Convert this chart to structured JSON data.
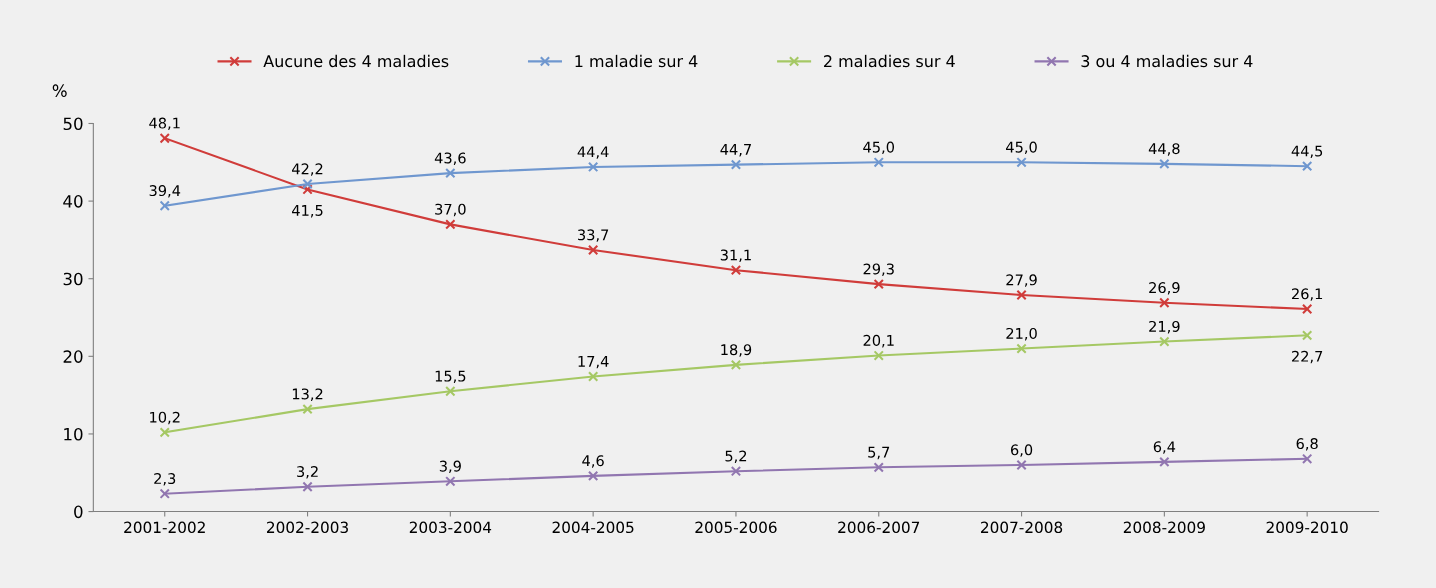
{
  "chart_data": {
    "type": "line",
    "ylabel": "%",
    "categories": [
      "2001-2002",
      "2002-2003",
      "2003-2004",
      "2004-2005",
      "2005-2006",
      "2006-2007",
      "2007-2008",
      "2008-2009",
      "2009-2010"
    ],
    "series": [
      {
        "name": "Aucune des 4 maladies",
        "color": "#d03c3a",
        "values": [
          48.1,
          41.5,
          37.0,
          33.7,
          31.1,
          29.3,
          27.9,
          26.9,
          26.1
        ],
        "value_labels": [
          "48,1",
          "41,5",
          "37,0",
          "33,7",
          "31,1",
          "29,3",
          "27,9",
          "26,9",
          "26,1"
        ]
      },
      {
        "name": "1 maladie sur 4",
        "color": "#6f97cf",
        "values": [
          39.4,
          42.2,
          43.6,
          44.4,
          44.7,
          45.0,
          45.0,
          44.8,
          44.5
        ],
        "value_labels": [
          "39,4",
          "42,2",
          "43,6",
          "44,4",
          "44,7",
          "45,0",
          "45,0",
          "44,8",
          "44,5"
        ]
      },
      {
        "name": "2 maladies sur 4",
        "color": "#a5c864",
        "values": [
          10.2,
          13.2,
          15.5,
          17.4,
          18.9,
          20.1,
          21.0,
          21.9,
          22.7
        ],
        "value_labels": [
          "10,2",
          "13,2",
          "15,5",
          "17,4",
          "18,9",
          "20,1",
          "21,0",
          "21,9",
          "22,7"
        ]
      },
      {
        "name": "3 ou 4 maladies sur 4",
        "color": "#9176b0",
        "values": [
          2.3,
          3.2,
          3.9,
          4.6,
          5.2,
          5.7,
          6.0,
          6.4,
          6.8
        ],
        "value_labels": [
          "2,3",
          "3,2",
          "3,9",
          "4,6",
          "5,2",
          "5,7",
          "6,0",
          "6,4",
          "6,8"
        ]
      }
    ],
    "ylim": [
      0,
      50
    ],
    "yticks": [
      0,
      10,
      20,
      30,
      40,
      50
    ],
    "grid": false,
    "legend": "top",
    "marker": "cross",
    "line_style": "solid"
  }
}
